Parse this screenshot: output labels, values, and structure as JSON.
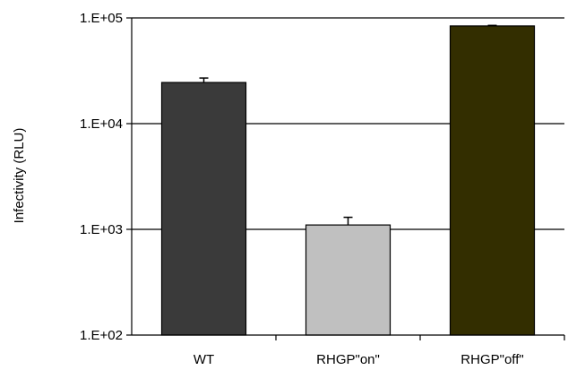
{
  "chart_data": {
    "type": "bar",
    "title": "",
    "xlabel": "",
    "ylabel": "Infectivity (RLU)",
    "yscale": "log",
    "ylim": [
      100,
      100000
    ],
    "yticks": [
      100,
      1000,
      10000,
      100000
    ],
    "ytick_labels": [
      "1.E+02",
      "1.E+03",
      "1.E+04",
      "1.E+05"
    ],
    "grid": "horizontal major",
    "categories": [
      "WT",
      "RHGP\"on\"",
      "RHGP\"off\""
    ],
    "values": [
      24500,
      1100,
      84000
    ],
    "error_upper": [
      27000,
      1300,
      85000
    ],
    "colors": [
      "#3a3a3a",
      "#c0c0c0",
      "#332e00"
    ]
  }
}
